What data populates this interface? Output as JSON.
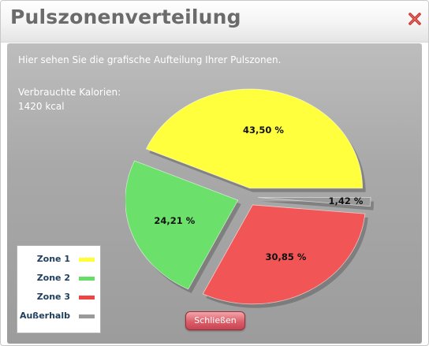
{
  "dialog": {
    "title": "Pulszonenverteilung",
    "intro": "Hier sehen Sie die grafische Aufteilung Ihrer Pulszonen.",
    "calories_label": "Verbrauchte Kalorien:",
    "calories_value": "1420 kcal",
    "close_button_label": "Schließen",
    "close_icon": "close-x-icon"
  },
  "legend": {
    "items": [
      {
        "label": "Zone 1",
        "color": "#ffff33"
      },
      {
        "label": "Zone 2",
        "color": "#66dd66"
      },
      {
        "label": "Zone 3",
        "color": "#ee4444"
      },
      {
        "label": "Außerhalb",
        "color": "#999999"
      }
    ]
  },
  "chart_data": {
    "type": "pie",
    "categories": [
      "Zone 1",
      "Zone 2",
      "Zone 3",
      "Außerhalb"
    ],
    "values": [
      43.5,
      24.21,
      30.85,
      1.42
    ],
    "labels": [
      "43,50 %",
      "24,21 %",
      "30,85 %",
      "1,42 %"
    ],
    "colors": [
      "#ffff3d",
      "#6be06b",
      "#f25555",
      "#9a9a9a"
    ],
    "exploded": true,
    "legend_position": "bottom-left"
  }
}
